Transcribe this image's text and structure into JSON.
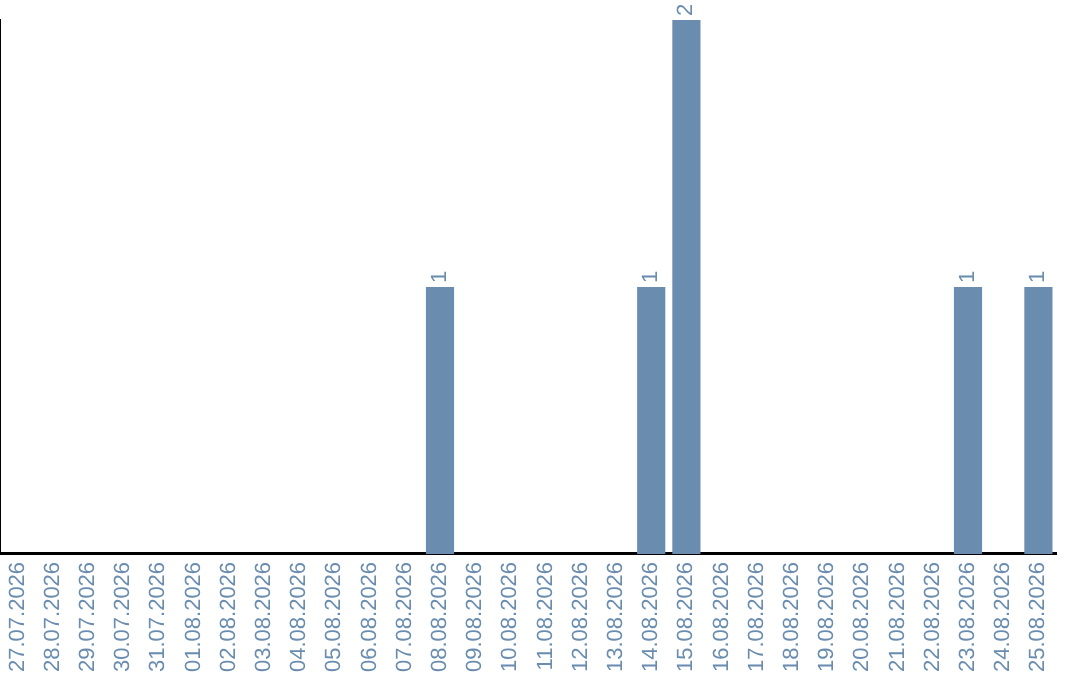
{
  "chart_data": {
    "type": "bar",
    "categories": [
      "27.07.2026",
      "28.07.2026",
      "29.07.2026",
      "30.07.2026",
      "31.07.2026",
      "01.08.2026",
      "02.08.2026",
      "03.08.2026",
      "04.08.2026",
      "05.08.2026",
      "06.08.2026",
      "07.08.2026",
      "08.08.2026",
      "09.08.2026",
      "10.08.2026",
      "11.08.2026",
      "12.08.2026",
      "13.08.2026",
      "14.08.2026",
      "15.08.2026",
      "16.08.2026",
      "17.08.2026",
      "18.08.2026",
      "19.08.2026",
      "20.08.2026",
      "21.08.2026",
      "22.08.2026",
      "23.08.2026",
      "24.08.2026",
      "25.08.2026"
    ],
    "values": [
      null,
      null,
      null,
      null,
      null,
      null,
      null,
      null,
      null,
      null,
      null,
      null,
      1,
      null,
      null,
      null,
      null,
      null,
      1,
      2,
      null,
      null,
      null,
      null,
      null,
      null,
      null,
      1,
      null,
      1
    ],
    "data_labels": true,
    "color": "#6a8caf",
    "ylim": [
      0,
      2
    ],
    "tick_labels": "x",
    "grid": false,
    "legend": false
  }
}
